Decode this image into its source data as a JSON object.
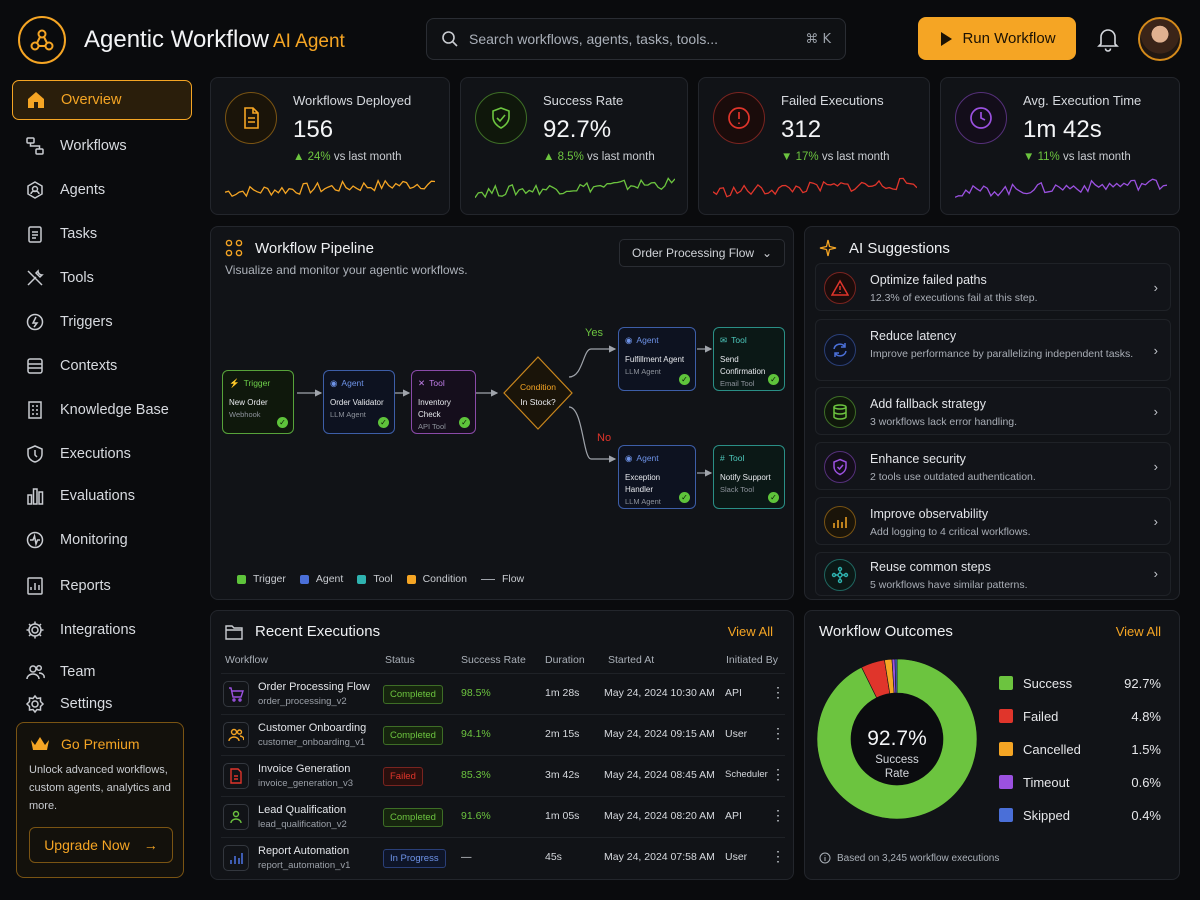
{
  "app": {
    "title": "Agentic Workflow",
    "subtitle": "AI Agent"
  },
  "search": {
    "placeholder": "Search workflows, agents, tasks, tools...",
    "shortcut": "⌘ K"
  },
  "header": {
    "run_label": "Run Workflow"
  },
  "sidebar": {
    "items": [
      {
        "label": "Overview",
        "icon": "home-icon",
        "active": true
      },
      {
        "label": "Workflows",
        "icon": "workflow-icon"
      },
      {
        "label": "Agents",
        "icon": "agent-icon"
      },
      {
        "label": "Tasks",
        "icon": "clipboard-icon"
      },
      {
        "label": "Tools",
        "icon": "tools-icon"
      },
      {
        "label": "Triggers",
        "icon": "trigger-icon"
      },
      {
        "label": "Contexts",
        "icon": "database-icon"
      },
      {
        "label": "Knowledge Base",
        "icon": "building-icon"
      },
      {
        "label": "Executions",
        "icon": "shield-icon"
      },
      {
        "label": "Evaluations",
        "icon": "bars-icon"
      },
      {
        "label": "Monitoring",
        "icon": "monitor-icon"
      },
      {
        "label": "Reports",
        "icon": "report-icon"
      },
      {
        "label": "Integrations",
        "icon": "gear-icon"
      },
      {
        "label": "Team",
        "icon": "team-icon"
      },
      {
        "label": "Settings",
        "icon": "settings-icon"
      }
    ],
    "premium": {
      "title": "Go Premium",
      "desc": "Unlock advanced workflows, custom agents, analytics and more.",
      "button": "Upgrade Now"
    }
  },
  "stats": [
    {
      "label": "Workflows Deployed",
      "value": "156",
      "change": "24%",
      "suffix": "vs last month",
      "direction": "up",
      "color": "#f5a524"
    },
    {
      "label": "Success Rate",
      "value": "92.7%",
      "change": "8.5%",
      "suffix": "vs last month",
      "direction": "up",
      "color": "#6cc43f"
    },
    {
      "label": "Failed Executions",
      "value": "312",
      "change": "17%",
      "suffix": "vs last month",
      "direction": "down",
      "color": "#e0352b"
    },
    {
      "label": "Avg. Execution Time",
      "value": "1m 42s",
      "change": "11%",
      "suffix": "vs last month",
      "direction": "down",
      "color": "#9b51e0"
    }
  ],
  "pipeline": {
    "title": "Workflow Pipeline",
    "subtitle": "Visualize and monitor your agentic workflows.",
    "selected_flow": "Order Processing Flow",
    "nodes": {
      "trigger": {
        "type": "Trigger",
        "name": "New Order",
        "sub": "Webhook"
      },
      "validator": {
        "type": "Agent",
        "name": "Order Validator",
        "sub": "LLM Agent"
      },
      "inventory": {
        "type": "Tool",
        "name": "Inventory Check",
        "sub": "API Tool"
      },
      "condition": {
        "type": "Condition",
        "name": "In Stock?"
      },
      "fulfillment": {
        "type": "Agent",
        "name": "Fulfillment Agent",
        "sub": "LLM Agent"
      },
      "confirm": {
        "type": "Tool",
        "name": "Send Confirmation",
        "sub": "Email Tool"
      },
      "exception": {
        "type": "Agent",
        "name": "Exception Handler",
        "sub": "LLM Agent"
      },
      "support": {
        "type": "Tool",
        "name": "Notify Support",
        "sub": "Slack Tool"
      }
    },
    "yes_label": "Yes",
    "no_label": "No",
    "legend": [
      {
        "label": "Trigger",
        "color": "#5ec43b"
      },
      {
        "label": "Agent",
        "color": "#4a6fd8"
      },
      {
        "label": "Tool",
        "color": "#2fb3b0"
      },
      {
        "label": "Condition",
        "color": "#f5a524"
      },
      {
        "label": "Flow",
        "color": "#a0a4ab"
      }
    ]
  },
  "suggestions": {
    "title": "AI Suggestions",
    "items": [
      {
        "title": "Optimize failed paths",
        "desc": "12.3% of executions fail at this step.",
        "icon": "warning-icon",
        "color": "#e0352b"
      },
      {
        "title": "Reduce latency",
        "desc": "Improve performance by parallelizing independent tasks.",
        "icon": "refresh-icon",
        "color": "#4a6fd8"
      },
      {
        "title": "Add fallback strategy",
        "desc": "3 workflows lack error handling.",
        "icon": "database-icon",
        "color": "#6cc43f"
      },
      {
        "title": "Enhance security",
        "desc": "2 tools use outdated authentication.",
        "icon": "shield-icon",
        "color": "#9b51e0"
      },
      {
        "title": "Improve observability",
        "desc": "Add logging to 4 critical workflows.",
        "icon": "chart-icon",
        "color": "#f5a524"
      },
      {
        "title": "Reuse common steps",
        "desc": "5 workflows have similar patterns.",
        "icon": "network-icon",
        "color": "#2fb3b0"
      }
    ]
  },
  "executions": {
    "title": "Recent Executions",
    "view_all": "View All",
    "headers": [
      "Workflow",
      "Status",
      "Success Rate",
      "Duration",
      "Started At",
      "Initiated By"
    ],
    "rows": [
      {
        "name": "Order Processing Flow",
        "version": "order_processing_v2",
        "status": "Completed",
        "rate": "98.5%",
        "duration": "1m 28s",
        "started": "May 24, 2024 10:30 AM",
        "by": "API",
        "icon": "cart-icon",
        "color": "#9b51e0"
      },
      {
        "name": "Customer Onboarding",
        "version": "customer_onboarding_v1",
        "status": "Completed",
        "rate": "94.1%",
        "duration": "2m 15s",
        "started": "May 24, 2024 09:15 AM",
        "by": "User",
        "icon": "users-icon",
        "color": "#f5a524"
      },
      {
        "name": "Invoice Generation",
        "version": "invoice_generation_v3",
        "status": "Failed",
        "rate": "85.3%",
        "duration": "3m 42s",
        "started": "May 24, 2024 08:45 AM",
        "by": "Scheduler",
        "icon": "document-icon",
        "color": "#e0352b"
      },
      {
        "name": "Lead Qualification",
        "version": "lead_qualification_v2",
        "status": "Completed",
        "rate": "91.6%",
        "duration": "1m 05s",
        "started": "May 24, 2024 08:20 AM",
        "by": "API",
        "icon": "users-icon",
        "color": "#6cc43f"
      },
      {
        "name": "Report Automation",
        "version": "report_automation_v1",
        "status": "In Progress",
        "rate": "—",
        "duration": "45s",
        "started": "May 24, 2024 07:58 AM",
        "by": "User",
        "icon": "chart-icon",
        "color": "#4a6fd8"
      }
    ]
  },
  "outcomes": {
    "title": "Workflow Outcomes",
    "view_all": "View All",
    "center_value": "92.7%",
    "center_label": "Success Rate",
    "note": "Based on 3,245 workflow executions"
  },
  "chart_data": {
    "type": "pie",
    "categories": [
      "Success",
      "Failed",
      "Cancelled",
      "Timeout",
      "Skipped"
    ],
    "values": [
      92.7,
      4.8,
      1.5,
      0.6,
      0.4
    ],
    "display": [
      "92.7%",
      "4.8%",
      "1.5%",
      "0.6%",
      "0.4%"
    ],
    "colors": [
      "#6cc43f",
      "#e0352b",
      "#f5a524",
      "#9b51e0",
      "#4a6fd8"
    ]
  }
}
